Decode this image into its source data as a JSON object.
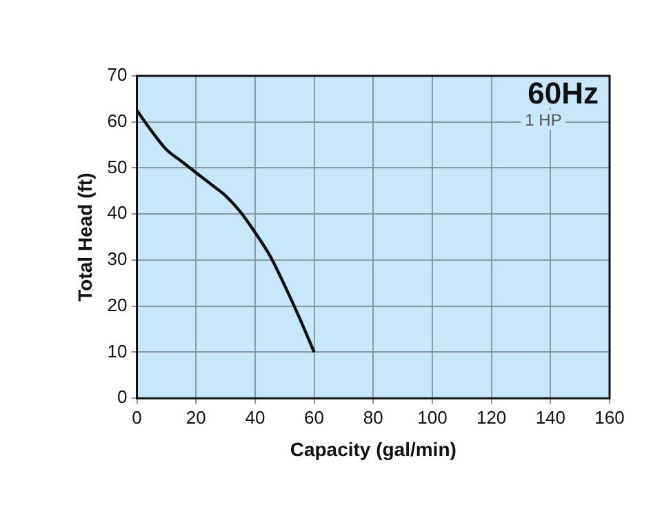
{
  "chart_data": {
    "type": "line",
    "xlabel": "Capacity (gal/min)",
    "ylabel": "Total Head (ft)",
    "annotations": [
      "60Hz",
      "1 HP"
    ],
    "series": [
      {
        "color": "#111111",
        "x": [
          0,
          5,
          10,
          15,
          20,
          25,
          30,
          35,
          40,
          45,
          50,
          55,
          60
        ],
        "values": [
          62.5,
          58,
          54,
          51.5,
          49,
          46.5,
          44,
          40.5,
          36,
          31,
          24.5,
          17.5,
          10
        ]
      }
    ],
    "xlim": [
      0,
      160
    ],
    "xticks": [
      0,
      20,
      40,
      60,
      80,
      100,
      120,
      140,
      160
    ],
    "ylim": [
      0,
      70
    ],
    "yticks": [
      0,
      10,
      20,
      30,
      40,
      50,
      60,
      70
    ],
    "grid": true,
    "legend": false,
    "marker": "none",
    "line_style": "solid"
  }
}
